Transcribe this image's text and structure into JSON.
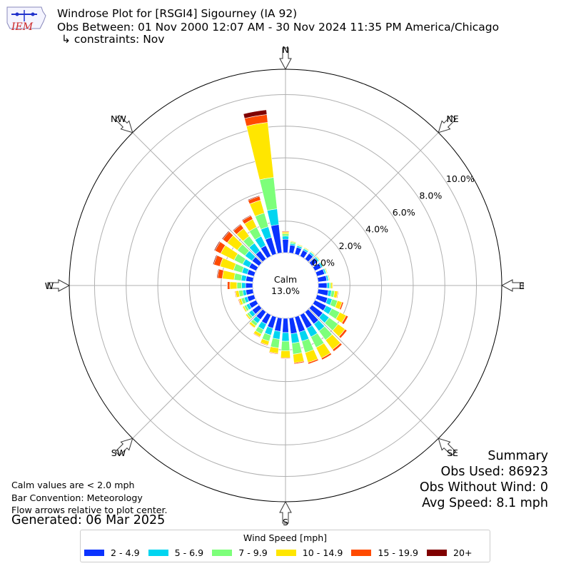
{
  "header": {
    "title": "Windrose Plot for [RSGI4] Sigourney (IA 92)",
    "obs_between": "Obs Between: 01 Nov 2000 12:07 AM - 30 Nov 2024 11:35 PM America/Chicago",
    "constraints": "↳ constraints: Nov"
  },
  "logo": {
    "text": "IEM",
    "color": "#cc2222"
  },
  "calm": {
    "label": "Calm",
    "value": "13.0%"
  },
  "notes": {
    "calm_note": "Calm values are < 2.0 mph",
    "bar_convention": "Bar Convention: Meteorology",
    "flow_arrows": "Flow arrows relative to plot center.",
    "generated": "Generated: 06 Mar 2025"
  },
  "summary": {
    "title": "Summary",
    "obs_used": "Obs Used: 86923",
    "obs_without_wind": "Obs Without Wind: 0",
    "avg_speed": "Avg Speed: 8.1 mph"
  },
  "legend": {
    "title": "Wind Speed [mph]",
    "items": [
      {
        "label": "2 - 4.9",
        "color": "#0a33ff"
      },
      {
        "label": "5 - 6.9",
        "color": "#00d5f0"
      },
      {
        "label": "7 - 9.9",
        "color": "#7dff7a"
      },
      {
        "label": "10 - 14.9",
        "color": "#ffe600"
      },
      {
        "label": "15 - 19.9",
        "color": "#ff4a00"
      },
      {
        "label": "20+",
        "color": "#800000"
      }
    ]
  },
  "chart_data": {
    "type": "windrose",
    "radial_tick_labels": [
      "0.0%",
      "2.0%",
      "4.0%",
      "6.0%",
      "8.0%",
      "10.0%"
    ],
    "radial_ticks": [
      0,
      2,
      4,
      6,
      8,
      10
    ],
    "radial_max": 11.6,
    "direction_labels": [
      "N",
      "NE",
      "E",
      "SE",
      "S",
      "SW",
      "W",
      "NW"
    ],
    "directions_deg": [
      0,
      10,
      20,
      30,
      40,
      50,
      60,
      70,
      80,
      90,
      100,
      110,
      120,
      130,
      140,
      150,
      160,
      170,
      180,
      190,
      200,
      210,
      220,
      230,
      240,
      250,
      260,
      270,
      280,
      290,
      300,
      310,
      320,
      330,
      340,
      350
    ],
    "series": [
      {
        "name": "2 - 4.9",
        "color": "#0a33ff",
        "values": [
          0.85,
          0.5,
          0.45,
          0.42,
          0.45,
          0.45,
          0.45,
          0.5,
          0.55,
          0.55,
          0.65,
          0.7,
          0.8,
          0.85,
          0.95,
          0.95,
          1.0,
          1.0,
          0.9,
          0.85,
          0.75,
          0.65,
          0.6,
          0.55,
          0.5,
          0.45,
          0.45,
          0.45,
          0.45,
          0.45,
          0.5,
          0.55,
          0.65,
          0.75,
          1.1,
          1.8
        ]
      },
      {
        "name": "5 - 6.9",
        "color": "#00d5f0",
        "values": [
          0.2,
          0.1,
          0.1,
          0.1,
          0.1,
          0.1,
          0.1,
          0.1,
          0.1,
          0.15,
          0.2,
          0.3,
          0.4,
          0.5,
          0.55,
          0.6,
          0.6,
          0.6,
          0.55,
          0.5,
          0.45,
          0.4,
          0.3,
          0.25,
          0.2,
          0.2,
          0.2,
          0.25,
          0.3,
          0.35,
          0.45,
          0.55,
          0.6,
          0.65,
          0.7,
          1.0
        ]
      },
      {
        "name": "7 - 9.9",
        "color": "#7dff7a",
        "values": [
          0.15,
          0.1,
          0.05,
          0.05,
          0.05,
          0.05,
          0.05,
          0.05,
          0.05,
          0.1,
          0.2,
          0.35,
          0.55,
          0.7,
          0.7,
          0.75,
          0.75,
          0.7,
          0.6,
          0.55,
          0.4,
          0.3,
          0.2,
          0.15,
          0.15,
          0.2,
          0.25,
          0.3,
          0.45,
          0.55,
          0.6,
          0.6,
          0.55,
          0.65,
          0.9,
          2.0
        ]
      },
      {
        "name": "10 - 14.9",
        "color": "#ffe600",
        "values": [
          0.1,
          0.05,
          0.05,
          0.05,
          0.05,
          0.05,
          0.05,
          0.05,
          0.05,
          0.1,
          0.2,
          0.3,
          0.45,
          0.55,
          0.75,
          0.75,
          0.65,
          0.55,
          0.45,
          0.35,
          0.25,
          0.2,
          0.15,
          0.1,
          0.1,
          0.15,
          0.2,
          0.45,
          0.75,
          0.9,
          0.95,
          0.8,
          0.6,
          0.55,
          0.85,
          3.5
        ]
      },
      {
        "name": "15 - 19.9",
        "color": "#ff4a00",
        "values": [
          0.05,
          0.03,
          0.02,
          0.02,
          0.02,
          0.02,
          0.02,
          0.02,
          0.02,
          0.03,
          0.05,
          0.1,
          0.15,
          0.15,
          0.15,
          0.12,
          0.1,
          0.07,
          0.05,
          0.05,
          0.05,
          0.05,
          0.03,
          0.03,
          0.03,
          0.05,
          0.05,
          0.15,
          0.3,
          0.4,
          0.4,
          0.35,
          0.3,
          0.25,
          0.25,
          0.5
        ]
      },
      {
        "name": "20+",
        "color": "#800000",
        "values": [
          0.01,
          0.01,
          0.0,
          0.0,
          0.0,
          0.0,
          0.0,
          0.0,
          0.0,
          0.0,
          0.01,
          0.01,
          0.02,
          0.02,
          0.02,
          0.02,
          0.01,
          0.01,
          0.01,
          0.01,
          0.01,
          0.01,
          0.0,
          0.0,
          0.0,
          0.01,
          0.01,
          0.03,
          0.05,
          0.06,
          0.06,
          0.06,
          0.05,
          0.05,
          0.05,
          0.3
        ]
      }
    ]
  }
}
